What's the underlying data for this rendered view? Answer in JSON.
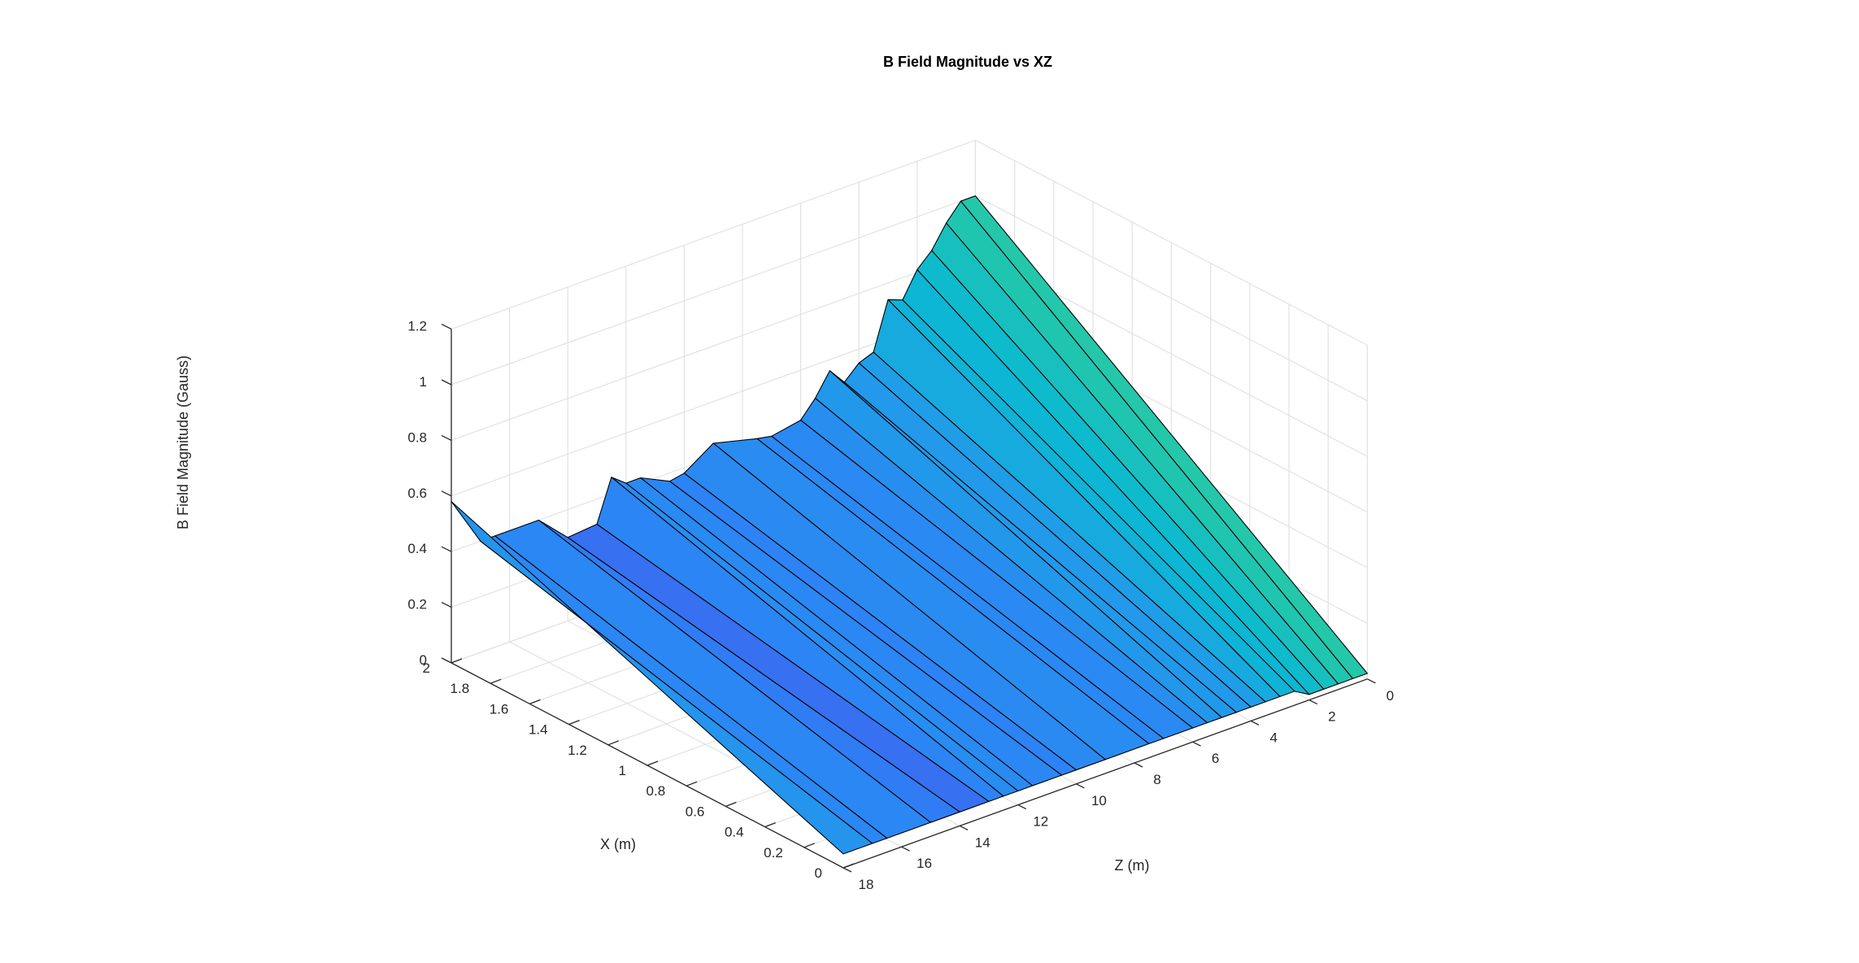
{
  "chart_data": {
    "type": "surface",
    "title": "B Field Magnitude  vs XZ",
    "xlabel": "X (m)",
    "ylabel": "B Field Magnitude (Gauss)",
    "zlabel": "Z (m)",
    "xlim": [
      0,
      2
    ],
    "zlim": [
      0,
      18
    ],
    "blim": [
      0,
      1.2
    ],
    "x_ticks": [
      "0",
      "0.2",
      "0.4",
      "0.6",
      "0.8",
      "1",
      "1.2",
      "1.4",
      "1.6",
      "1.8",
      "2"
    ],
    "z_ticks": [
      "0",
      "2",
      "4",
      "6",
      "8",
      "10",
      "12",
      "14",
      "16",
      "18"
    ],
    "b_ticks": [
      "0",
      "0.2",
      "0.4",
      "0.6",
      "0.8",
      "1",
      "1.2"
    ],
    "grid": true,
    "colormap": "parula",
    "x": [
      0,
      2
    ],
    "z": [
      0,
      0.5,
      1,
      1.5,
      2,
      2.5,
      3,
      3.5,
      4,
      4.5,
      5,
      5.5,
      6,
      7,
      7.5,
      9,
      10,
      10.5,
      11.5,
      12,
      12.5,
      13,
      14,
      15,
      16.5,
      17,
      18
    ],
    "b_at_x0": [
      0.02,
      0.02,
      0.02,
      0.02,
      0.02,
      0.05,
      0.05,
      0.05,
      0.05,
      0.05,
      0.05,
      0.05,
      0.05,
      0.05,
      0.05,
      0.05,
      0.05,
      0.05,
      0.05,
      0.05,
      0.05,
      0.05,
      0.05,
      0.05,
      0.05,
      0.05,
      0.05
    ],
    "b_at_x2": [
      1.0,
      1.0,
      0.94,
      0.86,
      0.81,
      0.72,
      0.74,
      0.57,
      0.55,
      0.5,
      0.56,
      0.48,
      0.42,
      0.4,
      0.41,
      0.45,
      0.38,
      0.37,
      0.42,
      0.42,
      0.46,
      0.31,
      0.3,
      0.4,
      0.4,
      0.4,
      0.58
    ]
  }
}
